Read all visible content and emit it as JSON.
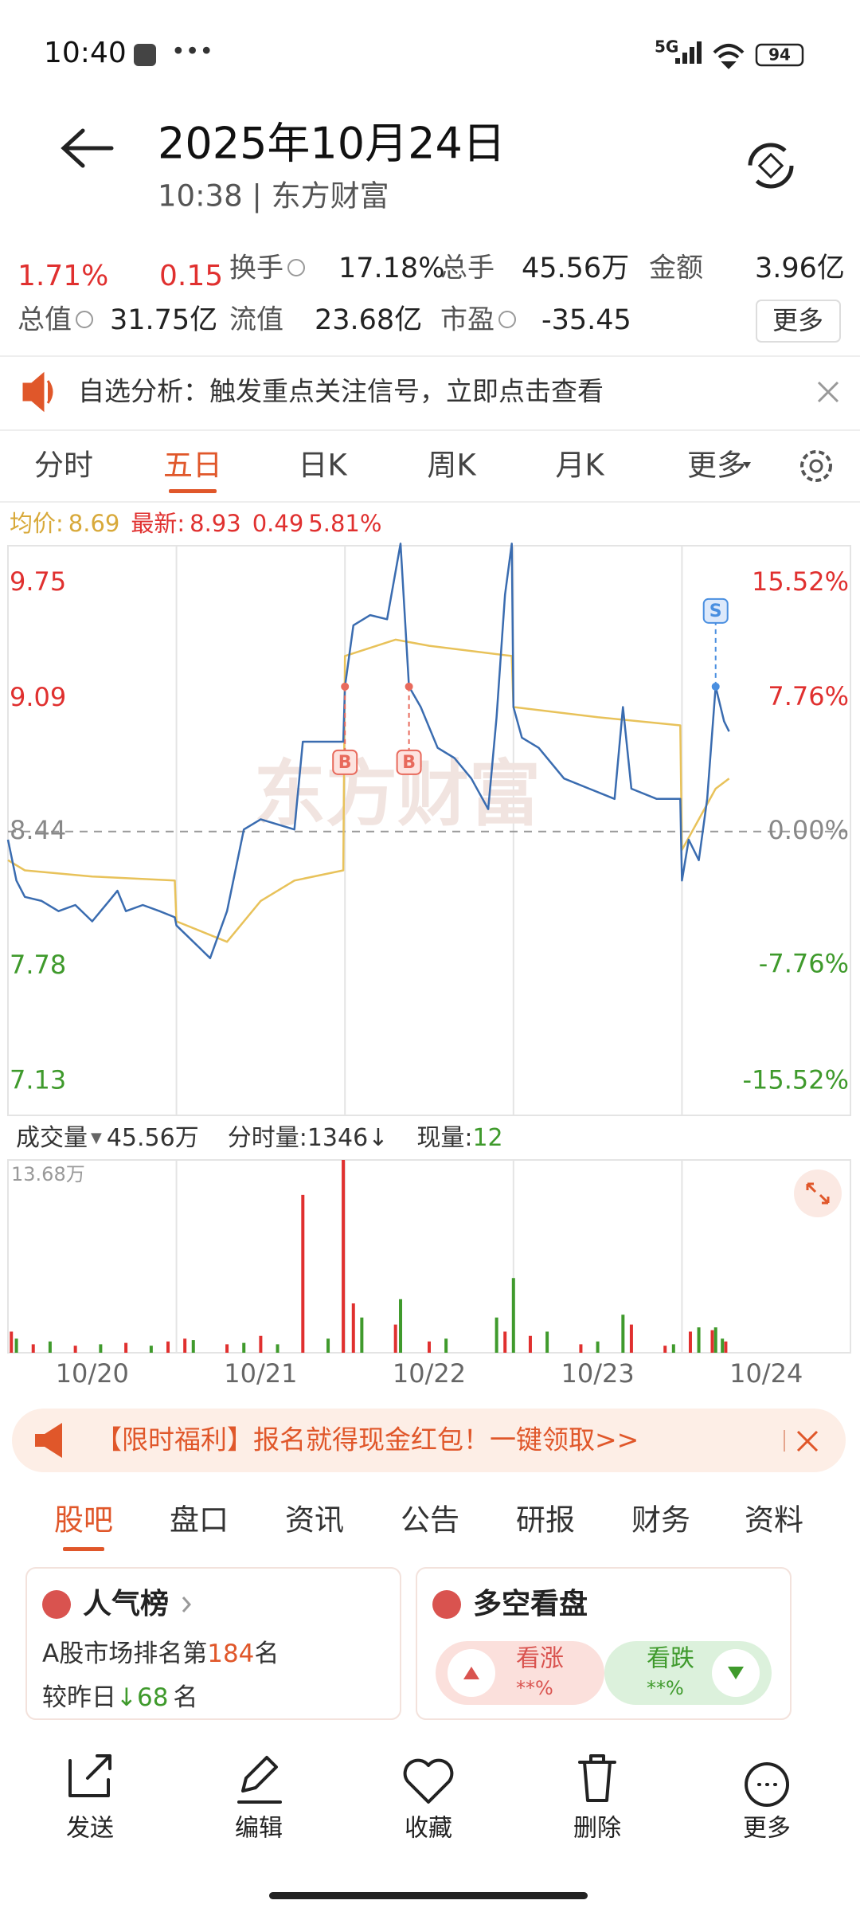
{
  "status_bar": {
    "time": "10:40",
    "network": "5G",
    "battery": "94"
  },
  "header": {
    "title": "2025年10月24日",
    "subtitle": "10:38 | 东方财富"
  },
  "quote": {
    "change_pct": "1.71%",
    "change": "0.15",
    "stats": [
      {
        "label": "换手",
        "value": "17.18%"
      },
      {
        "label": "总手",
        "value": "45.56万"
      },
      {
        "label": "金额",
        "value": "3.96亿"
      },
      {
        "label": "总值",
        "value": "31.75亿"
      },
      {
        "label": "流值",
        "value": "23.68亿"
      },
      {
        "label": "市盈",
        "value": "-35.45"
      }
    ],
    "more": "更多"
  },
  "notice": "自选分析：触发重点关注信号，立即点击查看",
  "tabs": {
    "items": [
      "分时",
      "五日",
      "日K",
      "周K",
      "月K",
      "更多"
    ],
    "active": 1
  },
  "legend": {
    "avg_label": "均价:",
    "avg": "8.69",
    "last_label": "最新:",
    "last": "8.93",
    "change": "0.49",
    "change_pct": "5.81%"
  },
  "price_chart": {
    "type": "line",
    "watermark": "东方财富",
    "xlim": [
      0,
      5
    ],
    "ylim": [
      7.05,
      9.84
    ],
    "yticks": [
      9.75,
      9.09,
      8.44,
      7.78,
      7.13
    ],
    "y2lim": [
      -16.47,
      16.59
    ],
    "y2ticks": [
      {
        "value": 15.52,
        "label": "15.52%"
      },
      {
        "value": 7.76,
        "label": "7.76%"
      },
      {
        "value": 0,
        "label": "0.00%"
      },
      {
        "value": -7.76,
        "label": "-7.76%"
      },
      {
        "value": -15.52,
        "label": "-15.52%"
      }
    ],
    "x_labels": [
      "10/20",
      "10/21",
      "10/22",
      "10/23",
      "10/24"
    ],
    "price": {
      "color": "#3a6cb0",
      "x": [
        0,
        0.05,
        0.1,
        0.2,
        0.3,
        0.4,
        0.5,
        0.6,
        0.65,
        0.7,
        0.8,
        0.9,
        0.99,
        1.0,
        1.1,
        1.2,
        1.3,
        1.4,
        1.5,
        1.7,
        1.75,
        1.99,
        2.0,
        2.05,
        2.15,
        2.25,
        2.33,
        2.38,
        2.45,
        2.55,
        2.65,
        2.75,
        2.85,
        2.9,
        2.95,
        2.99,
        3.0,
        3.05,
        3.15,
        3.3,
        3.45,
        3.6,
        3.65,
        3.7,
        3.85,
        3.99,
        4.0,
        4.04,
        4.1,
        4.15,
        4.2,
        4.25,
        4.28
      ],
      "values": [
        8.4,
        8.2,
        8.12,
        8.1,
        8.05,
        8.08,
        8.0,
        8.1,
        8.15,
        8.05,
        8.08,
        8.05,
        8.02,
        7.98,
        7.9,
        7.82,
        8.05,
        8.45,
        8.5,
        8.45,
        8.88,
        8.88,
        9.15,
        9.45,
        9.5,
        9.48,
        9.85,
        9.15,
        9.05,
        8.85,
        8.8,
        8.7,
        8.55,
        9.0,
        9.6,
        9.85,
        9.05,
        8.9,
        8.85,
        8.7,
        8.65,
        8.6,
        9.05,
        8.65,
        8.6,
        8.6,
        8.2,
        8.4,
        8.3,
        8.6,
        9.15,
        8.98,
        8.93
      ]
    },
    "average": {
      "color": "#e8c25a",
      "x": [
        0,
        0.1,
        0.5,
        0.99,
        1.0,
        1.3,
        1.5,
        1.7,
        1.99,
        2.0,
        2.3,
        2.5,
        2.99,
        3.0,
        3.5,
        3.99,
        4.0,
        4.1,
        4.2,
        4.28
      ],
      "values": [
        8.3,
        8.25,
        8.22,
        8.2,
        8.0,
        7.9,
        8.1,
        8.2,
        8.25,
        9.3,
        9.38,
        9.35,
        9.3,
        9.05,
        9.0,
        8.96,
        8.35,
        8.5,
        8.65,
        8.7
      ]
    },
    "signals": [
      {
        "label": "B",
        "x": 2.0,
        "value": 9.15
      },
      {
        "label": "B",
        "x": 2.38,
        "value": 9.15
      },
      {
        "label": "S",
        "x": 4.2,
        "value": 9.15
      }
    ]
  },
  "volume_chart": {
    "type": "bar",
    "label": "成交量",
    "total": "45.56万",
    "tick_volume": "分时量:1346↓",
    "current_label": "现量:",
    "current": "12",
    "max_label": "13.68万",
    "xlim": [
      0,
      5
    ],
    "ylim": [
      0,
      13.68
    ],
    "up": {
      "color": "#e0302f",
      "x": [
        0.02,
        0.15,
        0.4,
        0.7,
        0.95,
        1.05,
        1.3,
        1.5,
        1.75,
        1.99,
        2.05,
        2.3,
        2.5,
        2.95,
        3.1,
        3.4,
        3.7,
        3.9,
        4.05,
        4.18,
        4.26
      ],
      "values": [
        1.5,
        0.6,
        0.5,
        0.7,
        0.8,
        1.0,
        0.6,
        1.2,
        11.2,
        13.68,
        3.5,
        2.0,
        0.8,
        1.5,
        1.2,
        0.6,
        2.0,
        0.5,
        1.5,
        1.6,
        0.8
      ]
    },
    "down": {
      "color": "#3f9a2c",
      "x": [
        0.05,
        0.25,
        0.55,
        0.85,
        1.1,
        1.4,
        1.6,
        1.9,
        2.1,
        2.33,
        2.6,
        2.9,
        3.0,
        3.2,
        3.5,
        3.65,
        3.95,
        4.1,
        4.2,
        4.24
      ],
      "values": [
        1.0,
        0.8,
        0.6,
        0.5,
        0.9,
        0.7,
        0.6,
        1.0,
        2.5,
        3.8,
        1.0,
        2.5,
        5.3,
        1.5,
        0.8,
        2.7,
        0.6,
        1.8,
        1.8,
        1.0
      ]
    }
  },
  "banner": "【限时福利】报名就得现金红包！一键领取>>",
  "section_tabs": {
    "items": [
      "股吧",
      "盘口",
      "资讯",
      "公告",
      "研报",
      "财务",
      "资料"
    ],
    "active": 0
  },
  "cards": {
    "popularity": {
      "title": "人气榜",
      "rank_prefix": "A股市场排名第",
      "rank": "184",
      "rank_suffix": "名",
      "change_prefix": "较昨日",
      "change": "↓68",
      "change_suffix": "名"
    },
    "sentiment": {
      "title": "多空看盘",
      "bull": "看涨",
      "bull_value": "**%",
      "bear": "看跌",
      "bear_value": "**%"
    }
  },
  "bottom_nav": [
    "发送",
    "编辑",
    "收藏",
    "删除",
    "更多"
  ]
}
